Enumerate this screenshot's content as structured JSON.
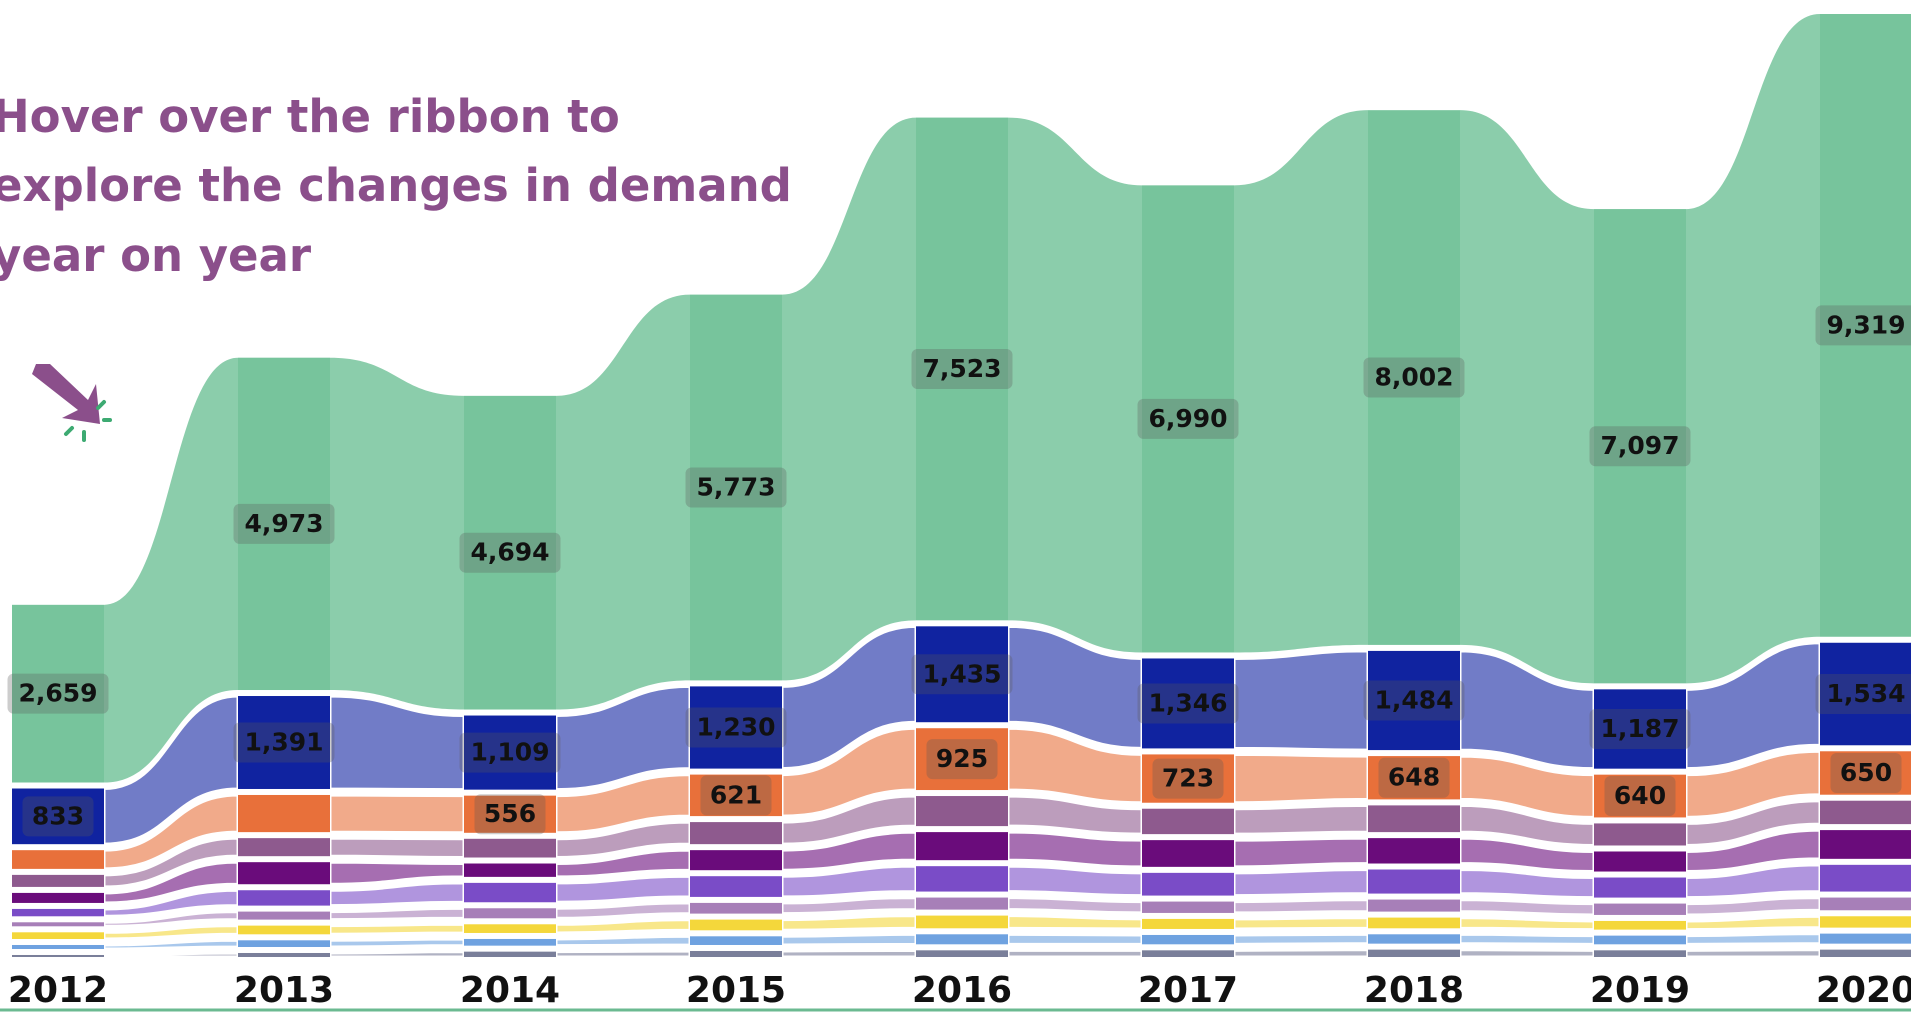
{
  "chart_data": {
    "type": "ribbon",
    "title_lines": [
      "Hover over the ribbon to",
      "explore the changes in demand",
      "year on year"
    ],
    "categories": [
      "2012",
      "2013",
      "2014",
      "2015",
      "2016",
      "2017",
      "2018",
      "2019",
      "2020"
    ],
    "series": [
      {
        "color": "#7a7f9a",
        "values": [
          30,
          60,
          80,
          90,
          100,
          100,
          110,
          100,
          110
        ]
      },
      {
        "color": "#6fa2e0",
        "values": [
          60,
          100,
          100,
          130,
          150,
          140,
          140,
          130,
          150
        ]
      },
      {
        "color": "#f4d73b",
        "values": [
          100,
          130,
          130,
          160,
          190,
          150,
          160,
          130,
          170
        ]
      },
      {
        "color": "#a77fb8",
        "values": [
          60,
          120,
          150,
          160,
          180,
          170,
          180,
          170,
          190
        ]
      },
      {
        "color": "#7a4cc7",
        "values": [
          110,
          230,
          290,
          310,
          380,
          340,
          360,
          300,
          400
        ]
      },
      {
        "color": "#6a0c7b",
        "values": [
          150,
          330,
          200,
          300,
          420,
          400,
          380,
          300,
          430
        ]
      },
      {
        "color": "#8e5a8e",
        "values": [
          180,
          270,
          280,
          330,
          450,
          380,
          400,
          330,
          350
        ]
      },
      {
        "color": "#e8703a",
        "values": [
          280,
          556,
          556,
          621,
          925,
          723,
          648,
          640,
          650
        ],
        "value_labels": [
          null,
          null,
          "556",
          "621",
          "925",
          "723",
          "648",
          "640",
          "650"
        ]
      },
      {
        "color": "#1023a0",
        "values": [
          833,
          1391,
          1109,
          1230,
          1435,
          1346,
          1484,
          1187,
          1534
        ],
        "value_labels": [
          "833",
          "1,391",
          "1,109",
          "1,230",
          "1,435",
          "1,346",
          "1,484",
          "1,187",
          "1,534"
        ]
      },
      {
        "color": "#3daa72",
        "values": [
          2659,
          4973,
          4694,
          5773,
          7523,
          6990,
          8002,
          7097,
          9319
        ],
        "value_labels": [
          "2,659",
          "4,973",
          "4,694",
          "5,773",
          "7,523",
          "6,990",
          "8,002",
          "7,097",
          "9,319"
        ]
      }
    ]
  }
}
